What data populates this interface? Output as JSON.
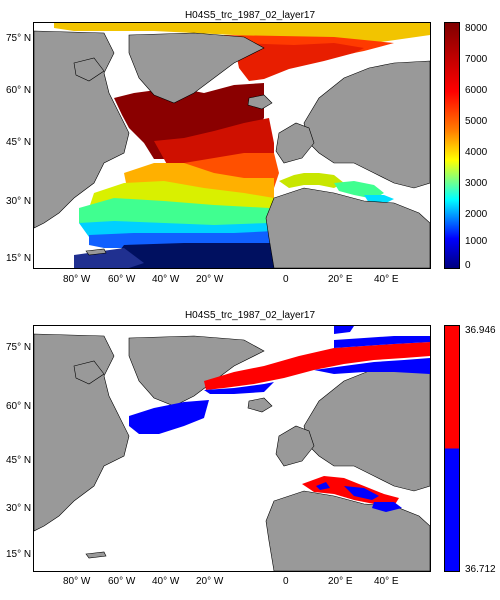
{
  "panels": [
    {
      "title": "H04S5_trc_1987_02_layer17",
      "x_ticks": [
        "80° W",
        "60° W",
        "40° W",
        "20° W",
        "0",
        "20° E",
        "40° E"
      ],
      "y_ticks": [
        "75° N",
        "60° N",
        "45° N",
        "30° N",
        "15° N"
      ],
      "colorbar": {
        "type": "continuous",
        "ticks": [
          "8000",
          "7000",
          "6000",
          "5000",
          "4000",
          "3000",
          "2000",
          "1000",
          "0"
        ],
        "colormap": [
          "#00007f",
          "#0000ff",
          "#007fff",
          "#00ffff",
          "#7fff7f",
          "#ffff00",
          "#ff7f00",
          "#ff0000",
          "#7f0000"
        ]
      }
    },
    {
      "title": "H04S5_trc_1987_02_layer17",
      "x_ticks": [
        "80° W",
        "60° W",
        "40° W",
        "20° W",
        "0",
        "20° E",
        "40° E"
      ],
      "y_ticks": [
        "75° N",
        "60° N",
        "45° N",
        "30° N",
        "15° N"
      ],
      "colorbar": {
        "type": "two-class",
        "top_label": "36.946",
        "bottom_label": "36.712",
        "colors": [
          "#ff0000",
          "#0000ff"
        ]
      }
    }
  ],
  "colors": {
    "land": "#999999",
    "ocean_nodata": "#ffffff"
  }
}
